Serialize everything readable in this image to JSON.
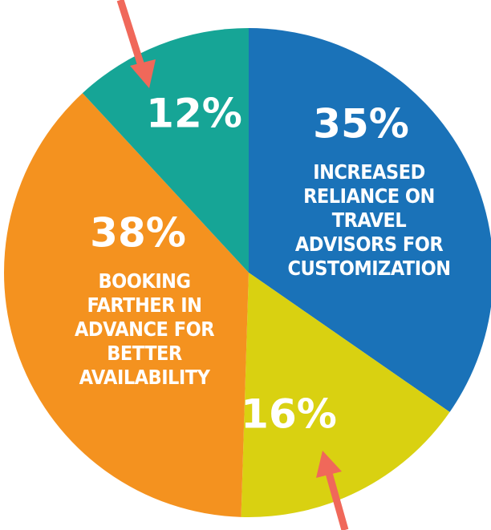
{
  "chart_data": {
    "type": "pie",
    "categories": [
      "INCREASED RELIANCE ON TRAVEL ADVISORS FOR CUSTOMIZATION",
      null,
      "BOOKING FARTHER IN ADVANCE FOR BETTER AVAILABILITY",
      null
    ],
    "values": [
      35,
      16,
      38,
      12
    ],
    "value_labels": [
      "35%",
      "16%",
      "38%",
      "12%"
    ],
    "colors": [
      "#1a72b8",
      "#d9d111",
      "#f4921f",
      "#16a596"
    ]
  }
}
